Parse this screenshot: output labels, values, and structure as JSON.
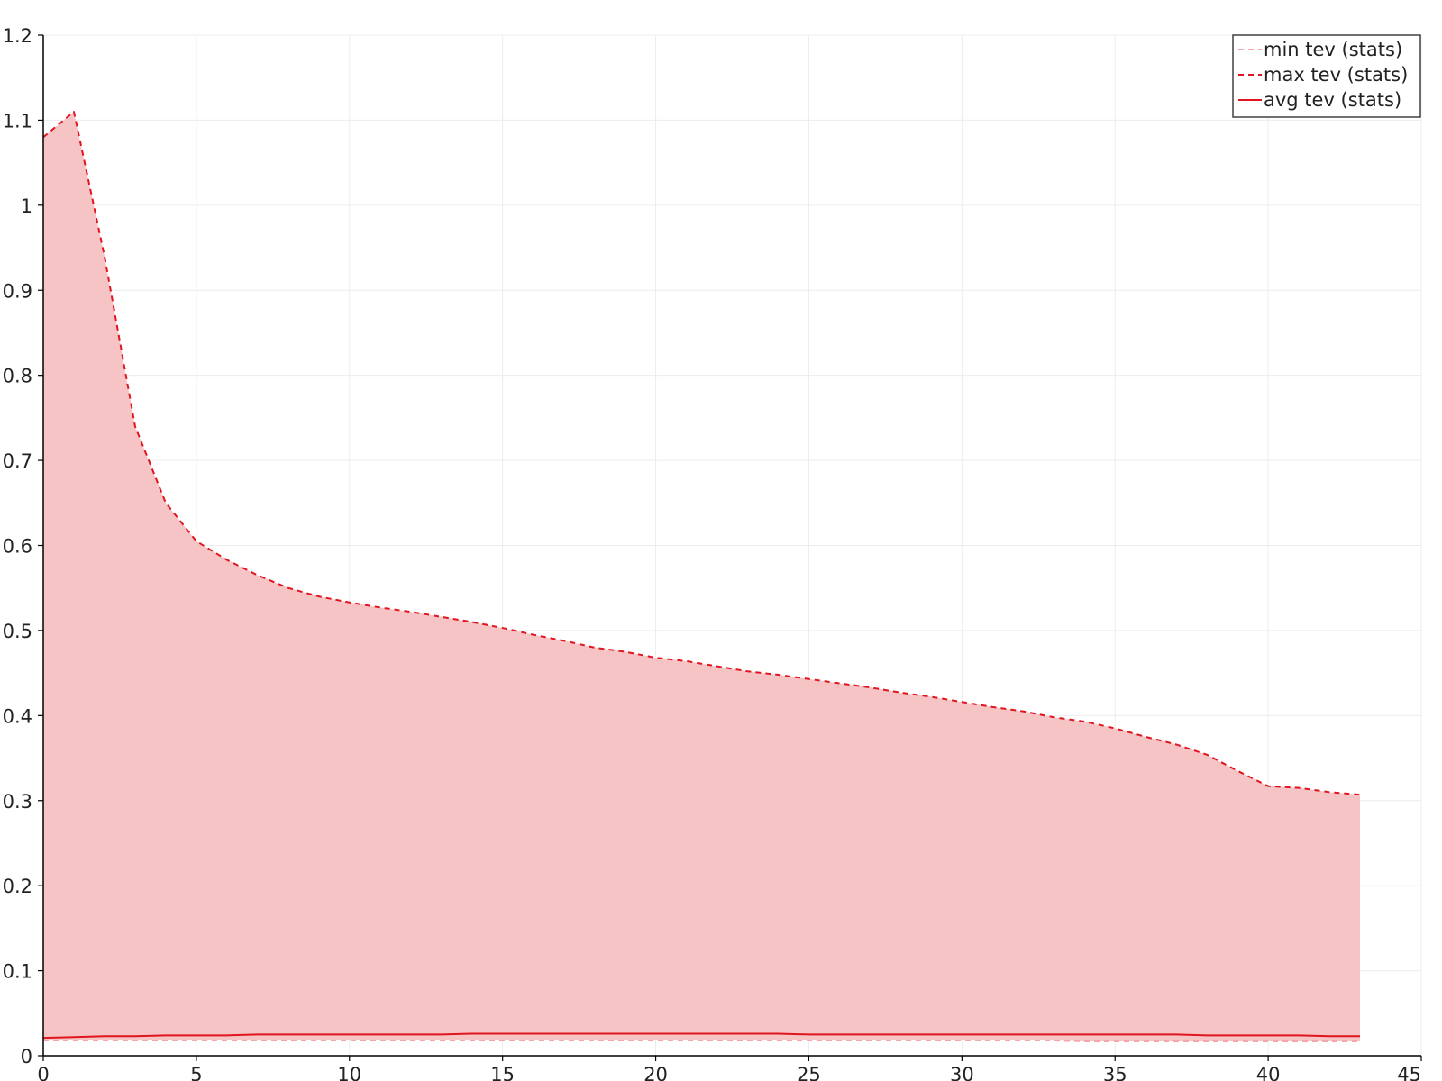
{
  "chart_data": {
    "type": "area",
    "title": "",
    "xlabel": "",
    "ylabel": "",
    "xlim": [
      0,
      45
    ],
    "ylim": [
      0,
      1.2
    ],
    "grid": true,
    "legend_placement": "top-right",
    "x_ticks": [
      0,
      5,
      10,
      15,
      20,
      25,
      30,
      35,
      40,
      45
    ],
    "y_ticks": [
      0,
      0.1,
      0.2,
      0.3,
      0.4,
      0.5,
      0.6,
      0.7,
      0.8,
      0.9,
      1,
      1.1,
      1.2
    ],
    "x_tick_labels": [
      "0",
      "5",
      "10",
      "15",
      "20",
      "25",
      "30",
      "35",
      "40",
      "45"
    ],
    "y_tick_labels": [
      "0",
      "0.1",
      "0.2",
      "0.3",
      "0.4",
      "0.5",
      "0.6",
      "0.7",
      "0.8",
      "0.9",
      "1",
      "1.1",
      "1.2"
    ],
    "x": [
      0,
      1,
      2,
      3,
      4,
      5,
      6,
      7,
      8,
      9,
      10,
      11,
      12,
      13,
      14,
      15,
      16,
      17,
      18,
      19,
      20,
      21,
      22,
      23,
      24,
      25,
      26,
      27,
      28,
      29,
      30,
      31,
      32,
      33,
      34,
      35,
      36,
      37,
      38,
      39,
      40,
      41,
      42,
      43
    ],
    "band_fill_color": "#f7c4c6",
    "series": [
      {
        "name": "min tev (stats)",
        "style": "dashed",
        "color": "#f4a6aa",
        "values": [
          0.018,
          0.018,
          0.018,
          0.018,
          0.018,
          0.018,
          0.018,
          0.018,
          0.018,
          0.018,
          0.018,
          0.018,
          0.018,
          0.018,
          0.018,
          0.018,
          0.018,
          0.018,
          0.018,
          0.018,
          0.018,
          0.018,
          0.018,
          0.018,
          0.018,
          0.018,
          0.018,
          0.018,
          0.018,
          0.018,
          0.018,
          0.018,
          0.018,
          0.018,
          0.017,
          0.017,
          0.017,
          0.017,
          0.017,
          0.017,
          0.017,
          0.017,
          0.017,
          0.017
        ]
      },
      {
        "name": "max tev (stats)",
        "style": "dashed",
        "color": "#e0151f",
        "values": [
          1.08,
          1.11,
          0.94,
          0.74,
          0.65,
          0.605,
          0.583,
          0.565,
          0.55,
          0.54,
          0.533,
          0.527,
          0.522,
          0.516,
          0.51,
          0.503,
          0.495,
          0.488,
          0.48,
          0.475,
          0.468,
          0.464,
          0.458,
          0.452,
          0.448,
          0.443,
          0.438,
          0.433,
          0.427,
          0.422,
          0.416,
          0.41,
          0.405,
          0.398,
          0.393,
          0.385,
          0.375,
          0.366,
          0.354,
          0.335,
          0.317,
          0.315,
          0.31,
          0.307
        ]
      },
      {
        "name": "avg tev (stats)",
        "style": "solid",
        "color": "#e0151f",
        "values": [
          0.021,
          0.022,
          0.023,
          0.023,
          0.024,
          0.024,
          0.024,
          0.025,
          0.025,
          0.025,
          0.025,
          0.025,
          0.025,
          0.025,
          0.026,
          0.026,
          0.026,
          0.026,
          0.026,
          0.026,
          0.026,
          0.026,
          0.026,
          0.026,
          0.026,
          0.025,
          0.025,
          0.025,
          0.025,
          0.025,
          0.025,
          0.025,
          0.025,
          0.025,
          0.025,
          0.025,
          0.025,
          0.025,
          0.024,
          0.024,
          0.024,
          0.024,
          0.023,
          0.023
        ]
      }
    ]
  }
}
